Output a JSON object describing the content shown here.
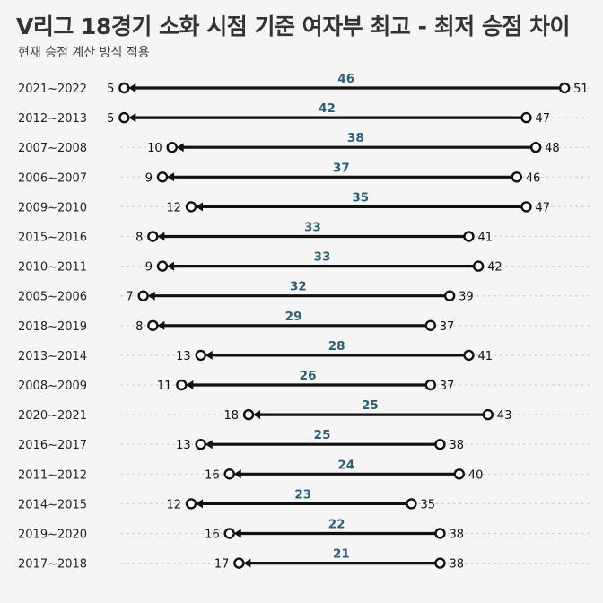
{
  "title": "V리그 18경기 소화 시점 기준 여자부 최고 - 최저 승점 차이",
  "subtitle": "현재 승점 계산 방식 적용",
  "colors": {
    "line": "#111111",
    "gap_label": "#2a6273",
    "grid": "#cccccc",
    "background": "#f5f5f5"
  },
  "chart_data": {
    "type": "dumbbell",
    "title": "V리그 18경기 소화 시점 기준 여자부 최고 - 최저 승점 차이",
    "subtitle": "현재 승점 계산 방식 적용",
    "grid": "horizontal dotted",
    "xlim": [
      0,
      56
    ],
    "rows": [
      {
        "season": "2021~2022",
        "min": 5,
        "max": 51,
        "gap": 46
      },
      {
        "season": "2012~2013",
        "min": 5,
        "max": 47,
        "gap": 42
      },
      {
        "season": "2007~2008",
        "min": 10,
        "max": 48,
        "gap": 38
      },
      {
        "season": "2006~2007",
        "min": 9,
        "max": 46,
        "gap": 37
      },
      {
        "season": "2009~2010",
        "min": 12,
        "max": 47,
        "gap": 35
      },
      {
        "season": "2015~2016",
        "min": 8,
        "max": 41,
        "gap": 33
      },
      {
        "season": "2010~2011",
        "min": 9,
        "max": 42,
        "gap": 33
      },
      {
        "season": "2005~2006",
        "min": 7,
        "max": 39,
        "gap": 32
      },
      {
        "season": "2018~2019",
        "min": 8,
        "max": 37,
        "gap": 29
      },
      {
        "season": "2013~2014",
        "min": 13,
        "max": 41,
        "gap": 28
      },
      {
        "season": "2008~2009",
        "min": 11,
        "max": 37,
        "gap": 26
      },
      {
        "season": "2020~2021",
        "min": 18,
        "max": 43,
        "gap": 25
      },
      {
        "season": "2016~2017",
        "min": 13,
        "max": 38,
        "gap": 25
      },
      {
        "season": "2011~2012",
        "min": 16,
        "max": 40,
        "gap": 24
      },
      {
        "season": "2014~2015",
        "min": 12,
        "max": 35,
        "gap": 23
      },
      {
        "season": "2019~2020",
        "min": 16,
        "max": 38,
        "gap": 22
      },
      {
        "season": "2017~2018",
        "min": 17,
        "max": 38,
        "gap": 21
      }
    ]
  }
}
